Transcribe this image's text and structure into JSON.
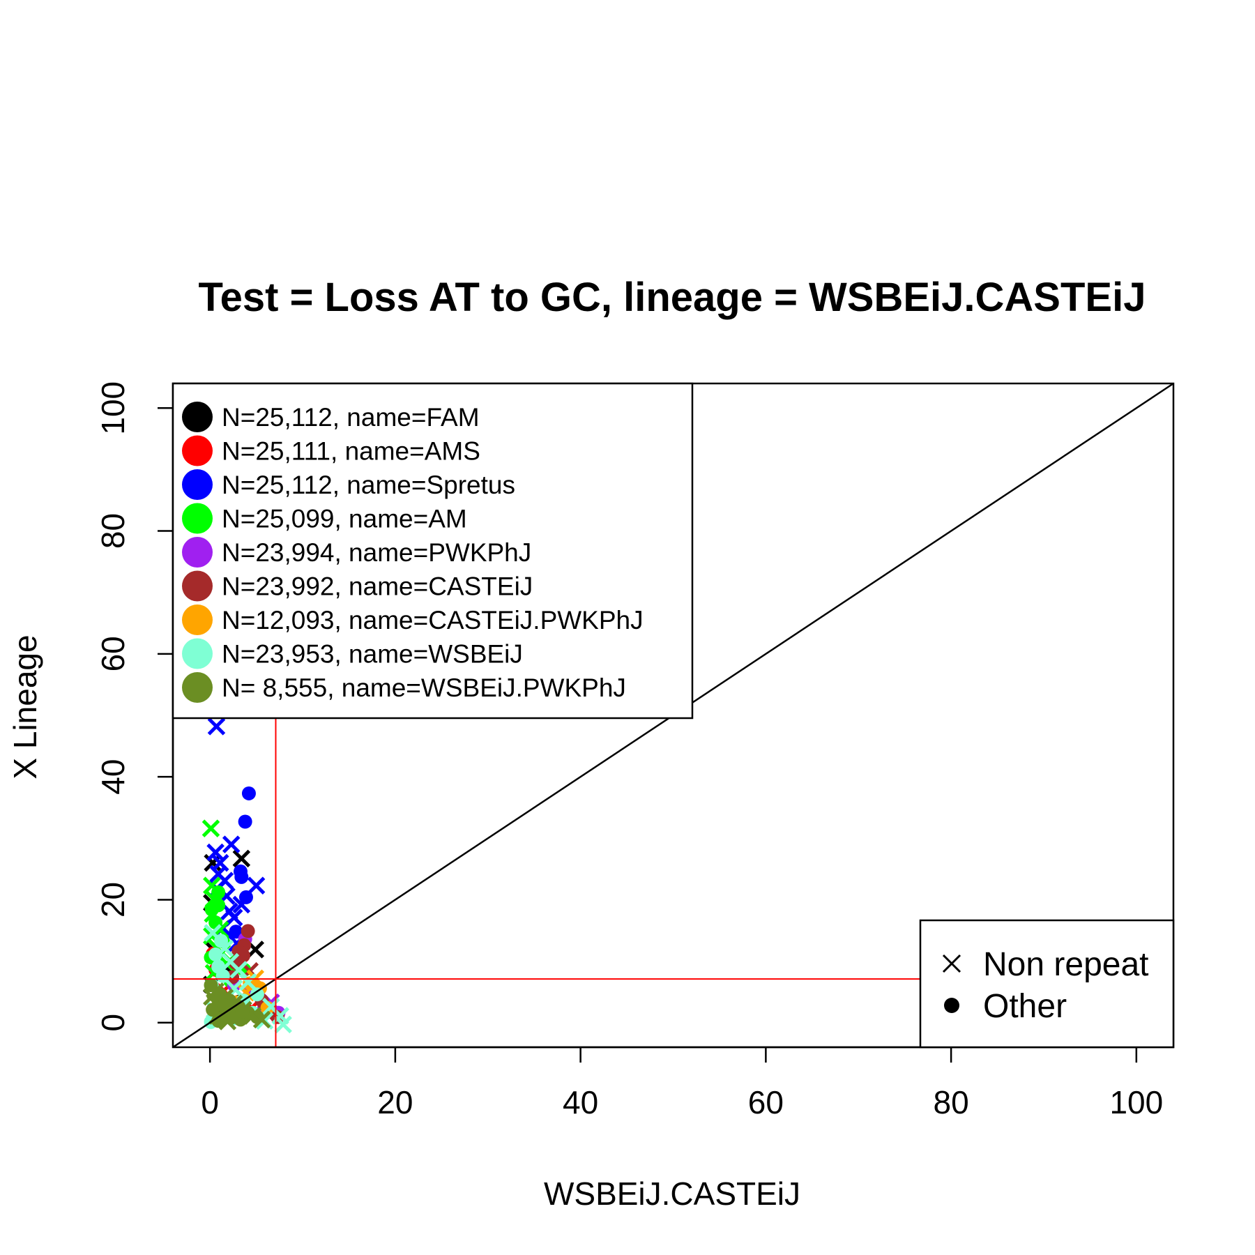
{
  "chart_data": {
    "type": "scatter",
    "title": "Test = Loss AT to GC, lineage = WSBEiJ.CASTEiJ",
    "xlabel": "WSBEiJ.CASTEiJ",
    "ylabel": "X Lineage",
    "xlim": [
      -4,
      104
    ],
    "ylim": [
      -4,
      104
    ],
    "x_ticks": [
      "0",
      "20",
      "40",
      "60",
      "80",
      "100"
    ],
    "y_ticks": [
      "0",
      "20",
      "40",
      "60",
      "80",
      "100"
    ],
    "x_tick_values": [
      0,
      20,
      40,
      60,
      80,
      100
    ],
    "y_tick_values": [
      0,
      20,
      40,
      60,
      80,
      100
    ],
    "reference_lines": {
      "diagonal": "y = x",
      "vertical_x": 7.1,
      "horizontal_y": 7.1,
      "threshold_color": "#ff0000"
    },
    "legend_position": "top-left",
    "symbol_legend_position": "bottom-right",
    "series": [
      {
        "name": "N=25,112, name=FAM",
        "color": "#000000",
        "points": [
          {
            "x": 3.4,
            "y": 26.7,
            "shape": "x"
          },
          {
            "x": 0.3,
            "y": 26,
            "shape": "x"
          },
          {
            "x": 4.9,
            "y": 11.9,
            "shape": "x"
          },
          {
            "x": 0.2,
            "y": 19.5,
            "shape": "x"
          },
          {
            "x": 1.2,
            "y": 15.2,
            "shape": "x"
          },
          {
            "x": 0.4,
            "y": 11.8,
            "shape": "x"
          },
          {
            "x": 2.2,
            "y": 8.2,
            "shape": "dot"
          },
          {
            "x": 0.8,
            "y": 4.1,
            "shape": "dot"
          },
          {
            "x": 1.6,
            "y": 2.6,
            "shape": "x"
          },
          {
            "x": 5.2,
            "y": 1.2,
            "shape": "dot"
          },
          {
            "x": 3.1,
            "y": 3.4,
            "shape": "dot"
          },
          {
            "x": 0.2,
            "y": 6.2,
            "shape": "x"
          }
        ]
      },
      {
        "name": "N=25,111, name=AMS",
        "color": "#ff0000",
        "points": [
          {
            "x": 0.6,
            "y": 8.6,
            "shape": "dot"
          },
          {
            "x": 1.5,
            "y": 5.2,
            "shape": "x"
          },
          {
            "x": 2.8,
            "y": 3.1,
            "shape": "dot"
          },
          {
            "x": 7.2,
            "y": 1.1,
            "shape": "dot"
          },
          {
            "x": 4.5,
            "y": 2.4,
            "shape": "x"
          },
          {
            "x": 0.3,
            "y": 11.2,
            "shape": "dot"
          }
        ]
      },
      {
        "name": "N=25,112, name=Spretus",
        "color": "#0000ff",
        "points": [
          {
            "x": 0.7,
            "y": 48.2,
            "shape": "x"
          },
          {
            "x": 4.2,
            "y": 37.3,
            "shape": "dot"
          },
          {
            "x": 3.8,
            "y": 32.7,
            "shape": "dot"
          },
          {
            "x": 2.3,
            "y": 29,
            "shape": "x"
          },
          {
            "x": 0.6,
            "y": 27.7,
            "shape": "x"
          },
          {
            "x": 1.1,
            "y": 26,
            "shape": "x"
          },
          {
            "x": 0.9,
            "y": 24.2,
            "shape": "x"
          },
          {
            "x": 3.3,
            "y": 24.6,
            "shape": "dot"
          },
          {
            "x": 3.4,
            "y": 23.7,
            "shape": "dot"
          },
          {
            "x": 5,
            "y": 22.3,
            "shape": "x"
          },
          {
            "x": 1.8,
            "y": 20.6,
            "shape": "x"
          },
          {
            "x": 3.4,
            "y": 19.2,
            "shape": "x"
          },
          {
            "x": 2.1,
            "y": 18.1,
            "shape": "x"
          },
          {
            "x": 2.6,
            "y": 17.1,
            "shape": "x"
          },
          {
            "x": 1.4,
            "y": 15.4,
            "shape": "x"
          },
          {
            "x": 2.8,
            "y": 14.8,
            "shape": "dot"
          },
          {
            "x": 0.8,
            "y": 21.7,
            "shape": "x"
          },
          {
            "x": 1.6,
            "y": 23.1,
            "shape": "x"
          },
          {
            "x": 2.9,
            "y": 12.9,
            "shape": "x"
          },
          {
            "x": 3.9,
            "y": 20.4,
            "shape": "dot"
          }
        ]
      },
      {
        "name": "N=25,099, name=AM",
        "color": "#00ff00",
        "points": [
          {
            "x": 0.1,
            "y": 31.6,
            "shape": "x"
          },
          {
            "x": 0.2,
            "y": 22.3,
            "shape": "x"
          },
          {
            "x": 0.4,
            "y": 20.1,
            "shape": "x"
          },
          {
            "x": 0.9,
            "y": 19.1,
            "shape": "dot"
          },
          {
            "x": 0.3,
            "y": 17.7,
            "shape": "x"
          },
          {
            "x": 0.6,
            "y": 16.3,
            "shape": "dot"
          },
          {
            "x": 1.1,
            "y": 15.1,
            "shape": "x"
          },
          {
            "x": 0.2,
            "y": 14.1,
            "shape": "x"
          },
          {
            "x": 1.4,
            "y": 13.2,
            "shape": "dot"
          },
          {
            "x": 0.7,
            "y": 12.2,
            "shape": "x"
          },
          {
            "x": 0.1,
            "y": 10.6,
            "shape": "dot"
          },
          {
            "x": 1.8,
            "y": 9.6,
            "shape": "x"
          },
          {
            "x": 3.7,
            "y": 8.6,
            "shape": "dot"
          },
          {
            "x": 0.4,
            "y": 8.1,
            "shape": "x"
          },
          {
            "x": 0.9,
            "y": 21.2,
            "shape": "dot"
          },
          {
            "x": 0.2,
            "y": 18.4,
            "shape": "dot"
          },
          {
            "x": 1.3,
            "y": 11.4,
            "shape": "x"
          },
          {
            "x": 2.2,
            "y": 6.8,
            "shape": "dot"
          }
        ]
      },
      {
        "name": "N=23,994, name=PWKPhJ",
        "color": "#a020f0",
        "points": [
          {
            "x": 3.8,
            "y": 13.6,
            "shape": "dot"
          },
          {
            "x": 6.6,
            "y": 3.3,
            "shape": "x"
          },
          {
            "x": 5.8,
            "y": 2.1,
            "shape": "dot"
          },
          {
            "x": 4.6,
            "y": 4.6,
            "shape": "x"
          },
          {
            "x": 2.6,
            "y": 6.1,
            "shape": "dot"
          },
          {
            "x": 7.4,
            "y": 1.6,
            "shape": "dot"
          }
        ]
      },
      {
        "name": "N=23,992, name=CASTEiJ",
        "color": "#a52a2a",
        "points": [
          {
            "x": 4.1,
            "y": 14.9,
            "shape": "dot"
          },
          {
            "x": 3.7,
            "y": 12.6,
            "shape": "dot"
          },
          {
            "x": 3.1,
            "y": 11.6,
            "shape": "dot"
          },
          {
            "x": 3.6,
            "y": 10.9,
            "shape": "dot"
          },
          {
            "x": 2.8,
            "y": 9.7,
            "shape": "dot"
          },
          {
            "x": 4.3,
            "y": 8.4,
            "shape": "x"
          },
          {
            "x": 2.4,
            "y": 7.4,
            "shape": "dot"
          },
          {
            "x": 5.6,
            "y": 3.6,
            "shape": "dot"
          },
          {
            "x": 6.1,
            "y": 1.6,
            "shape": "x"
          },
          {
            "x": 7.3,
            "y": 0.9,
            "shape": "dot"
          }
        ]
      },
      {
        "name": "N=12,093, name=CASTEiJ.PWKPhJ",
        "color": "#ffa500",
        "points": [
          {
            "x": 4.9,
            "y": 7.2,
            "shape": "x"
          },
          {
            "x": 4.3,
            "y": 6.4,
            "shape": "dot"
          },
          {
            "x": 5.4,
            "y": 5.6,
            "shape": "dot"
          },
          {
            "x": 3.9,
            "y": 4.9,
            "shape": "x"
          },
          {
            "x": 2.9,
            "y": 3.3,
            "shape": "dot"
          },
          {
            "x": 6.2,
            "y": 2.4,
            "shape": "dot"
          }
        ]
      },
      {
        "name": "N=23,953, name=WSBEiJ",
        "color": "#7fffd4",
        "points": [
          {
            "x": 0.3,
            "y": 14.6,
            "shape": "x"
          },
          {
            "x": 1.6,
            "y": 12.1,
            "shape": "x"
          },
          {
            "x": 0.6,
            "y": 11.1,
            "shape": "dot"
          },
          {
            "x": 2.2,
            "y": 9.9,
            "shape": "x"
          },
          {
            "x": 0.9,
            "y": 9.1,
            "shape": "dot"
          },
          {
            "x": 3.1,
            "y": 8.6,
            "shape": "x"
          },
          {
            "x": 1.4,
            "y": 7.6,
            "shape": "dot"
          },
          {
            "x": 4.1,
            "y": 6.6,
            "shape": "x"
          },
          {
            "x": 0.2,
            "y": 6.1,
            "shape": "dot"
          },
          {
            "x": 2.6,
            "y": 5.6,
            "shape": "x"
          },
          {
            "x": 5.1,
            "y": 4.6,
            "shape": "dot"
          },
          {
            "x": 1.9,
            "y": 4.1,
            "shape": "x"
          },
          {
            "x": 3.6,
            "y": 3.6,
            "shape": "dot"
          },
          {
            "x": 6.6,
            "y": 2.6,
            "shape": "x"
          },
          {
            "x": 0.5,
            "y": 2.1,
            "shape": "x"
          },
          {
            "x": 4.6,
            "y": 1.6,
            "shape": "dot"
          },
          {
            "x": 7.6,
            "y": 1.1,
            "shape": "x"
          },
          {
            "x": 2.4,
            "y": 0.6,
            "shape": "dot"
          },
          {
            "x": 5.9,
            "y": 0.3,
            "shape": "x"
          },
          {
            "x": 7.9,
            "y": -0.3,
            "shape": "x"
          },
          {
            "x": 0.1,
            "y": 0.1,
            "shape": "dot"
          },
          {
            "x": 1.2,
            "y": 13.3,
            "shape": "dot"
          }
        ]
      },
      {
        "name": "N= 8,555, name=WSBEiJ.PWKPhJ",
        "color": "#6b8e23",
        "points": [
          {
            "x": 0.1,
            "y": 6.1,
            "shape": "dot"
          },
          {
            "x": 0.6,
            "y": 5.1,
            "shape": "x"
          },
          {
            "x": 1.1,
            "y": 4.6,
            "shape": "dot"
          },
          {
            "x": 1.6,
            "y": 4.1,
            "shape": "x"
          },
          {
            "x": 2.1,
            "y": 3.6,
            "shape": "dot"
          },
          {
            "x": 2.6,
            "y": 3.1,
            "shape": "x"
          },
          {
            "x": 3.1,
            "y": 2.6,
            "shape": "dot"
          },
          {
            "x": 3.6,
            "y": 2.1,
            "shape": "x"
          },
          {
            "x": 4.1,
            "y": 1.6,
            "shape": "dot"
          },
          {
            "x": 4.6,
            "y": 1.1,
            "shape": "x"
          },
          {
            "x": 0.3,
            "y": 2.1,
            "shape": "dot"
          },
          {
            "x": 0.8,
            "y": 1.1,
            "shape": "x"
          },
          {
            "x": 1.3,
            "y": 0.6,
            "shape": "dot"
          },
          {
            "x": 1.8,
            "y": 1.6,
            "shape": "x"
          },
          {
            "x": 2.3,
            "y": 0.8,
            "shape": "dot"
          },
          {
            "x": 2.8,
            "y": 1.3,
            "shape": "x"
          },
          {
            "x": 3.3,
            "y": 0.5,
            "shape": "dot"
          },
          {
            "x": 0.5,
            "y": 3.3,
            "shape": "x"
          },
          {
            "x": 1.5,
            "y": 2.8,
            "shape": "dot"
          },
          {
            "x": 2.5,
            "y": 2.3,
            "shape": "x"
          },
          {
            "x": 3.5,
            "y": 1.8,
            "shape": "dot"
          },
          {
            "x": 0.2,
            "y": 4.2,
            "shape": "x"
          },
          {
            "x": 5.1,
            "y": 0.9,
            "shape": "dot"
          },
          {
            "x": 5.6,
            "y": 0.5,
            "shape": "x"
          },
          {
            "x": 0.9,
            "y": 0.3,
            "shape": "dot"
          },
          {
            "x": 1.9,
            "y": 0.2,
            "shape": "x"
          }
        ]
      }
    ],
    "symbol_legend": [
      {
        "label": "Non repeat",
        "shape": "x"
      },
      {
        "label": "Other",
        "shape": "dot"
      }
    ]
  }
}
